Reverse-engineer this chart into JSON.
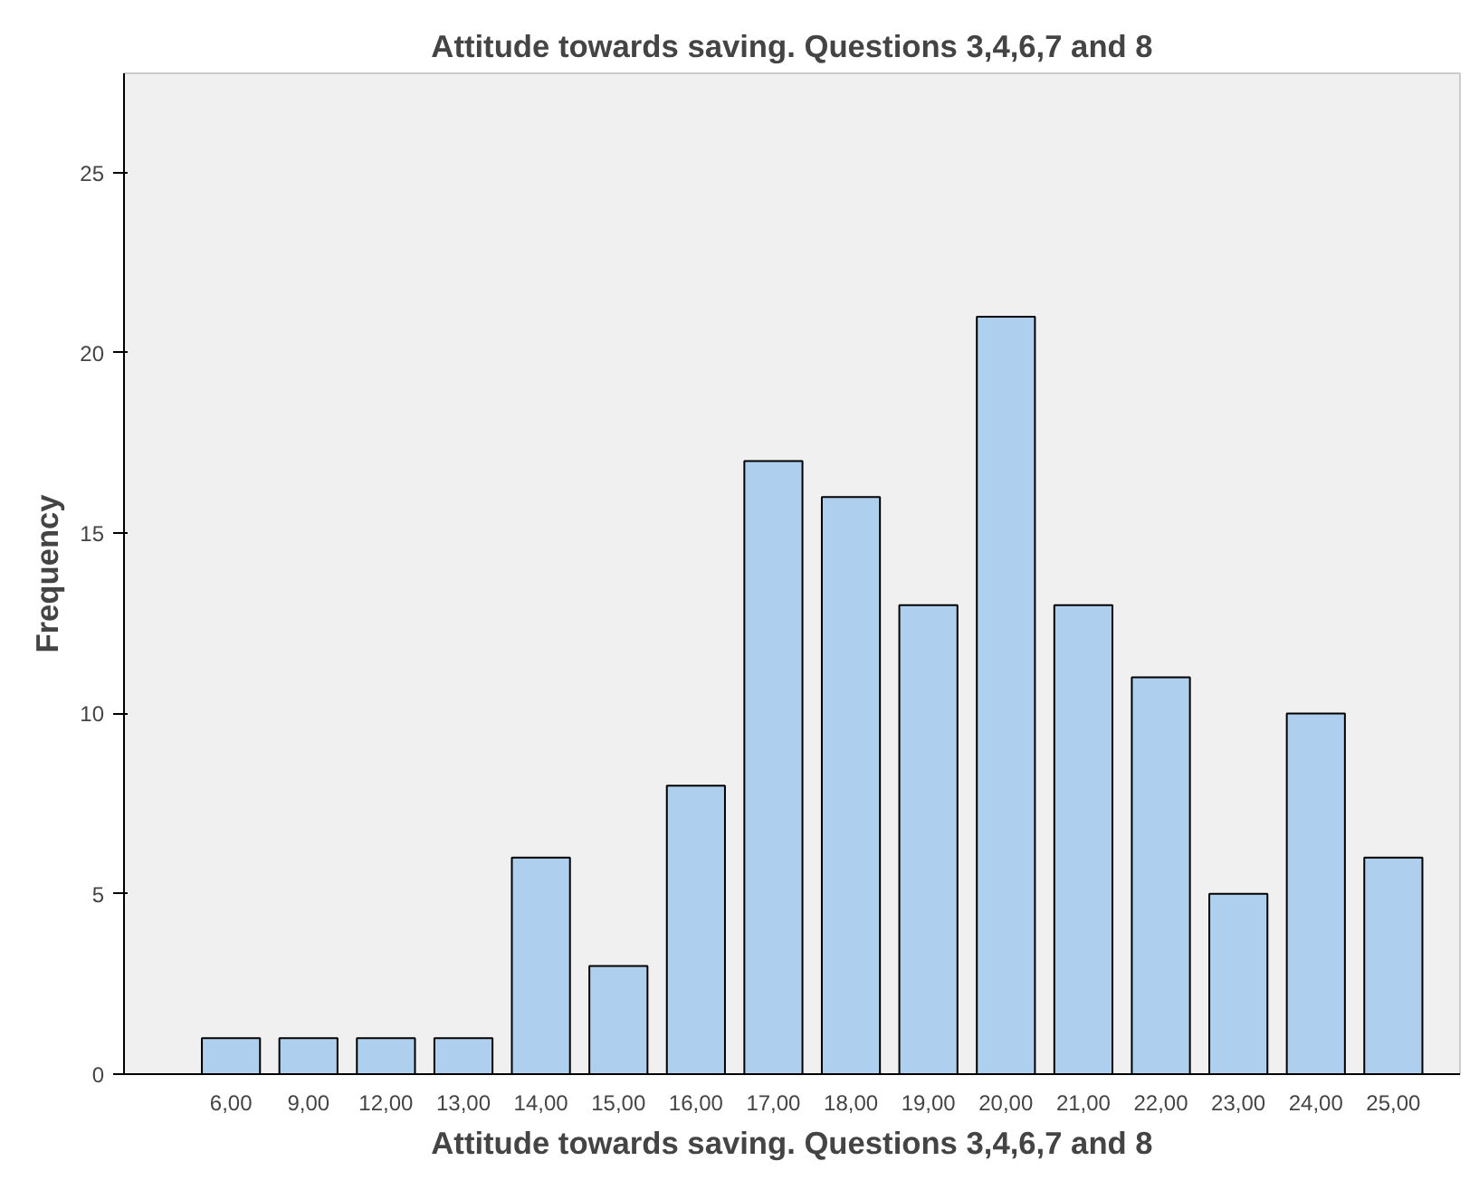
{
  "chart_data": {
    "type": "bar",
    "title": "Attitude towards saving. Questions 3,4,6,7 and 8",
    "xlabel": "Attitude towards saving. Questions 3,4,6,7 and 8",
    "ylabel": "Frequency",
    "categories": [
      "6,00",
      "9,00",
      "12,00",
      "13,00",
      "14,00",
      "15,00",
      "16,00",
      "17,00",
      "18,00",
      "19,00",
      "20,00",
      "21,00",
      "22,00",
      "23,00",
      "24,00",
      "25,00"
    ],
    "values": [
      1,
      1,
      1,
      1,
      6,
      3,
      8,
      17,
      16,
      13,
      21,
      13,
      11,
      5,
      10,
      6
    ],
    "color": "#aed0ee",
    "ylim": [
      0,
      27.75
    ],
    "yticks": [
      0,
      5,
      10,
      15,
      20,
      25
    ],
    "grid": false
  }
}
